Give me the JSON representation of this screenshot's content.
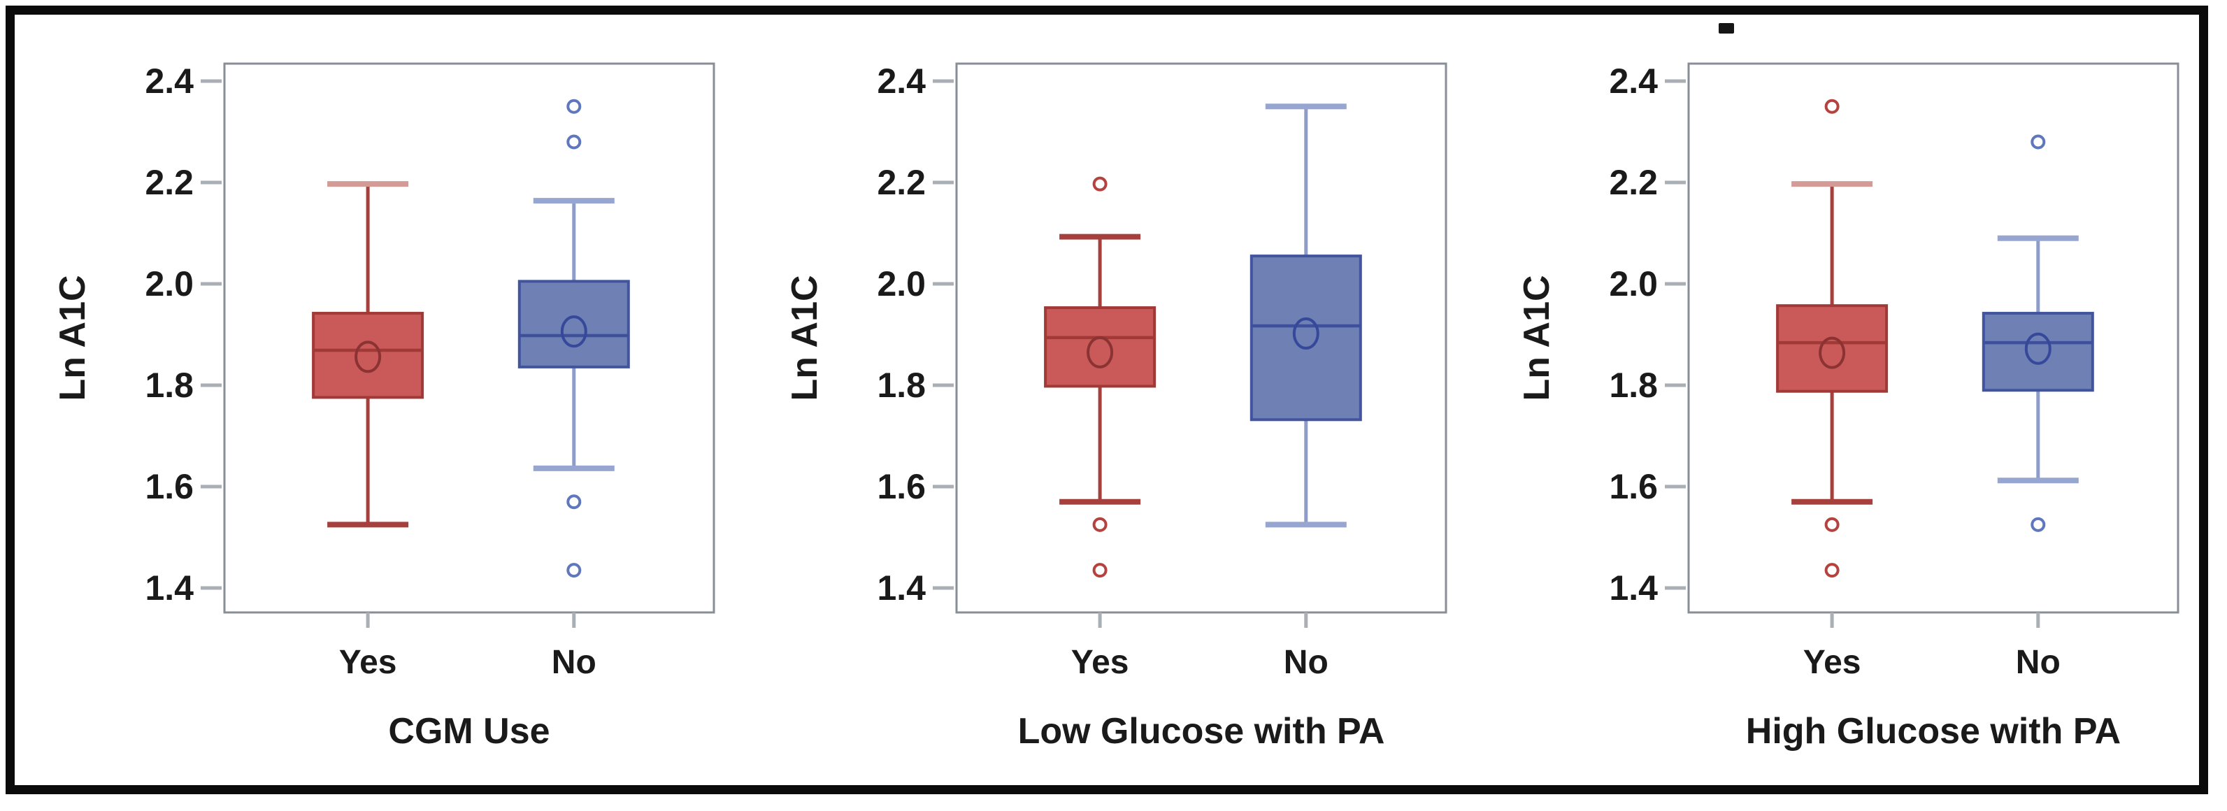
{
  "figure": {
    "type": "box-plot-panel",
    "y_axis": {
      "label": "Ln A1C",
      "tick_labels": [
        "2.4",
        "2.2",
        "2.0",
        "1.8",
        "1.6",
        "1.4"
      ],
      "tick_values": [
        2.4,
        2.2,
        2.0,
        1.8,
        1.6,
        1.4
      ],
      "range_min": 1.35,
      "range_max": 2.435,
      "grid": false
    },
    "categories": [
      "Yes",
      "No"
    ],
    "legend": "none",
    "colors": {
      "red_fill": "#C95A59",
      "red_stroke": "#A13937",
      "red_median": "#A13937",
      "red_whisker": "#A6403D",
      "red_cap": "#A6403D",
      "red_cap_light": "#D49A95",
      "red_outlier": "#B5423E",
      "red_mean": "#8A3332",
      "blue_fill": "#6F80B5",
      "blue_stroke": "#42549E",
      "blue_median": "#3E509B",
      "blue_whisker": "#8D9CC9",
      "blue_cap": "#97A5D1",
      "blue_outlier": "#5F77BC",
      "blue_mean": "#36489A",
      "frame": "#878E96",
      "tick": "#A9AFB4",
      "text": "#1A1A1A",
      "border": "#0B0B0B"
    }
  },
  "chart_data": [
    {
      "type": "box",
      "title": "CGM Use",
      "xlabel": "CGM Use",
      "ylabel": "Ln A1C",
      "ylim": [
        1.35,
        2.435
      ],
      "categories": [
        "Yes",
        "No"
      ],
      "series": [
        {
          "name": "Yes",
          "color": "red",
          "low": 1.525,
          "q1": 1.776,
          "median": 1.869,
          "mean": 1.856,
          "q3": 1.942,
          "high": 2.197,
          "outliers": [],
          "top_cap_light": true
        },
        {
          "name": "No",
          "color": "blue",
          "low": 1.636,
          "q1": 1.836,
          "median": 1.898,
          "mean": 1.906,
          "q3": 2.005,
          "high": 2.164,
          "outliers": [
            2.35,
            2.28,
            1.57,
            1.435
          ],
          "top_cap_light": false
        }
      ]
    },
    {
      "type": "box",
      "title": "Low Glucose with PA",
      "xlabel": "Low Glucose with PA",
      "ylabel": "Ln A1C",
      "ylim": [
        1.35,
        2.435
      ],
      "categories": [
        "Yes",
        "No"
      ],
      "series": [
        {
          "name": "Yes",
          "color": "red",
          "low": 1.57,
          "q1": 1.798,
          "median": 1.894,
          "mean": 1.865,
          "q3": 1.953,
          "high": 2.093,
          "outliers": [
            2.197,
            1.525,
            1.435
          ],
          "top_cap_light": false
        },
        {
          "name": "No",
          "color": "blue",
          "low": 1.525,
          "q1": 1.732,
          "median": 1.917,
          "mean": 1.902,
          "q3": 2.055,
          "high": 2.35,
          "outliers": [],
          "top_cap_light": false
        }
      ]
    },
    {
      "type": "box",
      "title": "High Glucose with PA",
      "xlabel": "High Glucose with PA",
      "ylabel": "Ln A1C",
      "ylim": [
        1.35,
        2.435
      ],
      "categories": [
        "Yes",
        "No"
      ],
      "series": [
        {
          "name": "Yes",
          "color": "red",
          "low": 1.57,
          "q1": 1.788,
          "median": 1.884,
          "mean": 1.864,
          "q3": 1.957,
          "high": 2.197,
          "outliers": [
            2.35,
            1.525,
            1.435
          ],
          "top_cap_light": true
        },
        {
          "name": "No",
          "color": "blue",
          "low": 1.612,
          "q1": 1.79,
          "median": 1.884,
          "mean": 1.872,
          "q3": 1.942,
          "high": 2.09,
          "outliers": [
            2.28,
            1.525
          ],
          "top_cap_light": false
        }
      ]
    }
  ]
}
